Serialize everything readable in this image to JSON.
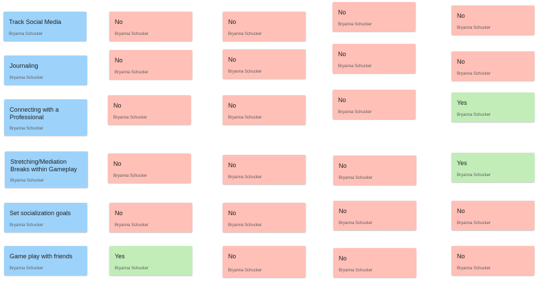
{
  "rows": [
    {
      "label": {
        "text": "Track Social Media",
        "author": "Bryanna Schucker"
      },
      "cells": [
        {
          "text": "No",
          "author": "Bryanna Schucker"
        },
        {
          "text": "No",
          "author": "Bryanna Schucker"
        },
        {
          "text": "No",
          "author": "Bryanna Schucker"
        },
        {
          "text": "No",
          "author": "Bryanna Schucker"
        }
      ]
    },
    {
      "label": {
        "text": "Journaling",
        "author": "Bryanna Schucker"
      },
      "cells": [
        {
          "text": "No",
          "author": "Bryanna Schucker"
        },
        {
          "text": "No",
          "author": "Bryanna Schucker"
        },
        {
          "text": "No",
          "author": "Bryanna Schucker"
        },
        {
          "text": "No",
          "author": "Bryanna Schucker"
        }
      ]
    },
    {
      "label": {
        "text": "Connecting with a Professional",
        "author": "Bryanna Schucker"
      },
      "cells": [
        {
          "text": "No",
          "author": "Bryanna Schucker"
        },
        {
          "text": "No",
          "author": "Bryanna Schucker"
        },
        {
          "text": "No",
          "author": "Bryanna Schucker"
        },
        {
          "text": "Yes",
          "author": "Bryanna Schucker"
        }
      ]
    },
    {
      "label": {
        "text": "Stretching/Mediation Breaks within Gameplay",
        "author": "Bryanna Schucker"
      },
      "cells": [
        {
          "text": "No",
          "author": "Bryanna Schucker"
        },
        {
          "text": "No",
          "author": "Bryanna Schucker"
        },
        {
          "text": "No",
          "author": "Bryanna Schucker"
        },
        {
          "text": "Yes",
          "author": "Bryanna Schucker"
        }
      ]
    },
    {
      "label": {
        "text": "Set socialization goals",
        "author": "Bryanna Schucker"
      },
      "cells": [
        {
          "text": "No",
          "author": "Bryanna Schucker"
        },
        {
          "text": "No",
          "author": "Bryanna Schucker"
        },
        {
          "text": "No",
          "author": "Bryanna Schucker"
        },
        {
          "text": "No",
          "author": "Bryanna Schucker"
        }
      ]
    },
    {
      "label": {
        "text": "Game play with friends",
        "author": "Bryanna Schucker"
      },
      "cells": [
        {
          "text": "Yes",
          "author": "Bryanna Schucker"
        },
        {
          "text": "No",
          "author": "Bryanna Schucker"
        },
        {
          "text": "No",
          "author": "Bryanna Schucker"
        },
        {
          "text": "No",
          "author": "Bryanna Schucker"
        }
      ]
    }
  ],
  "colors": {
    "label": "#9dd3fb",
    "no": "#ffc0b8",
    "yes": "#c2edb9"
  }
}
